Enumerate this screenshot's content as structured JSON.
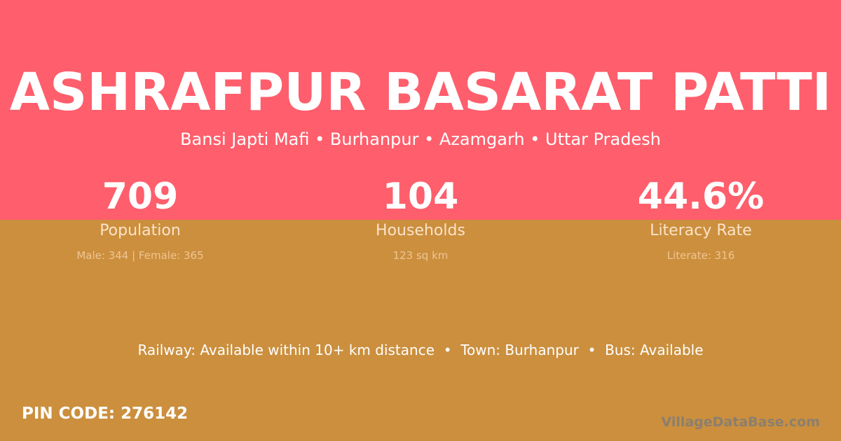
{
  "colors": {
    "top_band": "#FF5E6C",
    "bottom_band": "#CB8F3E"
  },
  "title": "ASHRAFPUR BASARAT PATTI",
  "subtitle": "Bansi Japti Mafi • Burhanpur • Azamgarh • Uttar Pradesh",
  "stats": [
    {
      "value": "709",
      "label": "Population",
      "detail": "Male: 344 | Female: 365"
    },
    {
      "value": "104",
      "label": "Households",
      "detail": "123 sq km"
    },
    {
      "value": "44.6%",
      "label": "Literacy Rate",
      "detail": "Literate: 316"
    }
  ],
  "info_line": "Railway: Available within 10+ km distance  •  Town: Burhanpur  •  Bus: Available",
  "pin_code": "PIN CODE: 276142",
  "brand": "VillageDataBase.com"
}
